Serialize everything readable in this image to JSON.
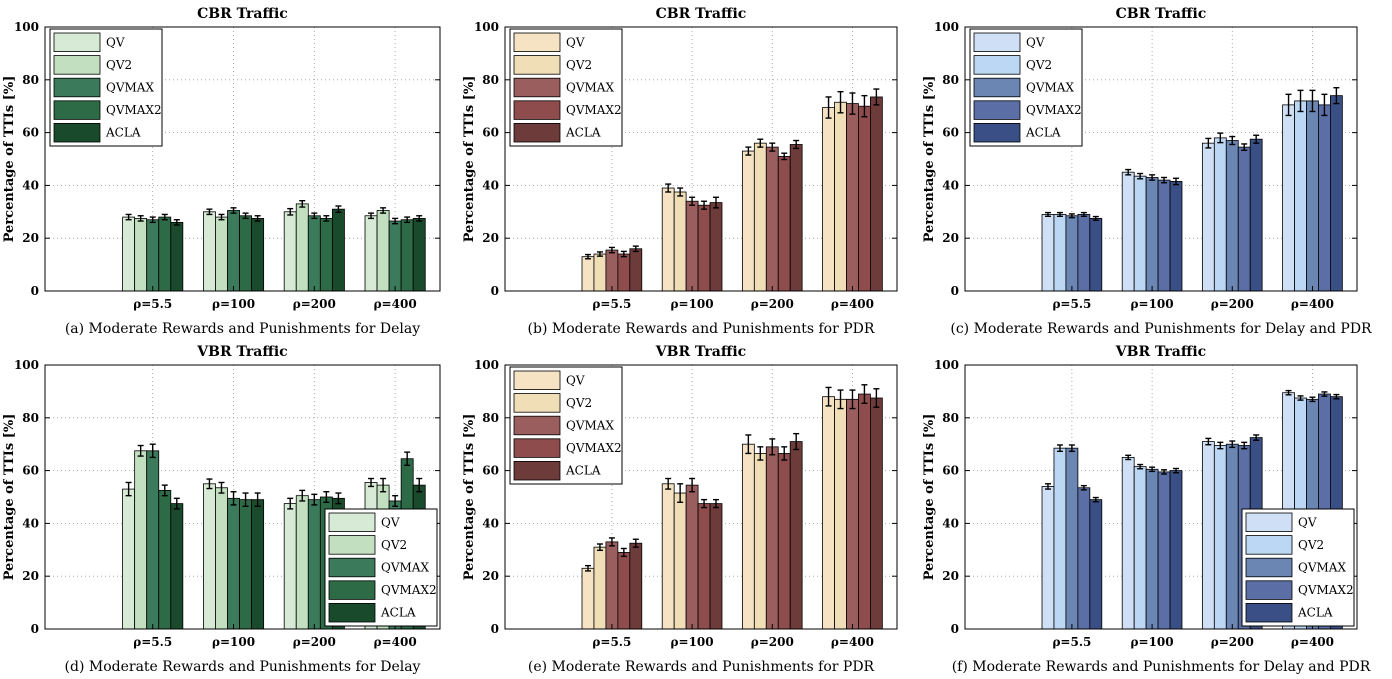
{
  "panel_labels": [
    "(a)",
    "(b)",
    "(c)",
    "(d)",
    "(e)",
    "(f)"
  ],
  "palettes": {
    "green": [
      "#d7ead6",
      "#c2e0c0",
      "#3b7a5a",
      "#2d6b47",
      "#1a4a2c"
    ],
    "brown": [
      "#f6e3c4",
      "#f0deb7",
      "#9a5e5e",
      "#8f4c4c",
      "#6e3b3b"
    ],
    "blue": [
      "#cfe0f6",
      "#bcd7f4",
      "#6b86b3",
      "#5b6fa6",
      "#3a4f86"
    ]
  },
  "chart_data": [
    {
      "type": "bar",
      "title": "CBR Traffic",
      "caption": "(a) Moderate Rewards and Punishments for Delay",
      "ylabel": "Percentage of TTIs [%]",
      "xlabel": "",
      "categories": [
        "ρ=5.5",
        "ρ=100",
        "ρ=200",
        "ρ=400"
      ],
      "ylim": [
        0,
        100
      ],
      "yticks": [
        0,
        20,
        40,
        60,
        80,
        100
      ],
      "grid": true,
      "legend_position": "top-left",
      "palette": "green",
      "series": [
        {
          "name": "QV",
          "values": [
            28,
            30,
            30,
            28.5
          ],
          "errors": [
            1,
            1,
            1.2,
            1
          ]
        },
        {
          "name": "QV2",
          "values": [
            27.5,
            28,
            33,
            30.5
          ],
          "errors": [
            1,
            1,
            1.2,
            1
          ]
        },
        {
          "name": "QVMAX",
          "values": [
            27,
            30.5,
            28.5,
            26.5
          ],
          "errors": [
            1,
            1,
            1,
            1
          ]
        },
        {
          "name": "QVMAX2",
          "values": [
            28,
            28.5,
            27.5,
            27
          ],
          "errors": [
            1,
            1,
            1,
            1
          ]
        },
        {
          "name": "ACLA",
          "values": [
            26,
            27.5,
            31,
            27.5
          ],
          "errors": [
            1,
            1,
            1.2,
            1
          ]
        }
      ]
    },
    {
      "type": "bar",
      "title": "CBR Traffic",
      "caption": "(b) Moderate Rewards and Punishments for PDR",
      "ylabel": "Percentage of TTIs [%]",
      "xlabel": "",
      "categories": [
        "ρ=5.5",
        "ρ=100",
        "ρ=200",
        "ρ=400"
      ],
      "ylim": [
        0,
        100
      ],
      "yticks": [
        0,
        20,
        40,
        60,
        80,
        100
      ],
      "grid": true,
      "legend_position": "top-left",
      "palette": "brown",
      "series": [
        {
          "name": "QV",
          "values": [
            13,
            39,
            53,
            69.5
          ],
          "errors": [
            0.8,
            1.5,
            1.5,
            4
          ]
        },
        {
          "name": "QV2",
          "values": [
            14,
            37.5,
            56,
            71.5
          ],
          "errors": [
            0.8,
            1.5,
            1.5,
            4
          ]
        },
        {
          "name": "QVMAX",
          "values": [
            15.5,
            34,
            54.5,
            71
          ],
          "errors": [
            1,
            1.5,
            1.5,
            4
          ]
        },
        {
          "name": "QVMAX2",
          "values": [
            14,
            32.5,
            51,
            70
          ],
          "errors": [
            1,
            1.5,
            1.2,
            4
          ]
        },
        {
          "name": "ACLA",
          "values": [
            16,
            33.5,
            55.5,
            73.5
          ],
          "errors": [
            1,
            2,
            1.5,
            3
          ]
        }
      ]
    },
    {
      "type": "bar",
      "title": "CBR Traffic",
      "caption": "(c) Moderate Rewards and Punishments for Delay and PDR",
      "ylabel": "Percentage of TTIs [%]",
      "xlabel": "",
      "categories": [
        "ρ=5.5",
        "ρ=100",
        "ρ=200",
        "ρ=400"
      ],
      "ylim": [
        0,
        100
      ],
      "yticks": [
        0,
        20,
        40,
        60,
        80,
        100
      ],
      "grid": true,
      "legend_position": "top-left",
      "palette": "blue",
      "series": [
        {
          "name": "QV",
          "values": [
            29,
            45,
            56,
            70.5
          ],
          "errors": [
            0.7,
            1,
            1.8,
            4
          ]
        },
        {
          "name": "QV2",
          "values": [
            29,
            43.5,
            58,
            72
          ],
          "errors": [
            0.7,
            1,
            1.8,
            4
          ]
        },
        {
          "name": "QVMAX",
          "values": [
            28.5,
            43,
            57,
            72
          ],
          "errors": [
            0.7,
            1,
            1.5,
            4
          ]
        },
        {
          "name": "QVMAX2",
          "values": [
            29,
            42,
            54.5,
            70.5
          ],
          "errors": [
            0.7,
            1,
            1.2,
            4
          ]
        },
        {
          "name": "ACLA",
          "values": [
            27.5,
            41.5,
            57.5,
            74
          ],
          "errors": [
            0.7,
            1.2,
            1.5,
            3
          ]
        }
      ]
    },
    {
      "type": "bar",
      "title": "VBR Traffic",
      "caption": "(d) Moderate Rewards and Punishments for Delay",
      "ylabel": "Percentage of TTIs [%]",
      "xlabel": "",
      "categories": [
        "ρ=5.5",
        "ρ=100",
        "ρ=200",
        "ρ=400"
      ],
      "ylim": [
        0,
        100
      ],
      "yticks": [
        0,
        20,
        40,
        60,
        80,
        100
      ],
      "grid": true,
      "legend_position": "bottom-right",
      "palette": "green",
      "series": [
        {
          "name": "QV",
          "values": [
            53,
            55,
            47.5,
            55.5
          ],
          "errors": [
            2.5,
            1.8,
            2,
            1.5
          ]
        },
        {
          "name": "QV2",
          "values": [
            67.5,
            53.5,
            50.5,
            54.5
          ],
          "errors": [
            2,
            2,
            2,
            2.5
          ]
        },
        {
          "name": "QVMAX",
          "values": [
            67.5,
            49.5,
            49,
            48.5
          ],
          "errors": [
            2.5,
            2.5,
            2,
            2
          ]
        },
        {
          "name": "QVMAX2",
          "values": [
            52.5,
            49,
            50,
            64.5
          ],
          "errors": [
            2,
            2.5,
            2,
            2.5
          ]
        },
        {
          "name": "ACLA",
          "values": [
            47.5,
            49,
            49.5,
            54.5
          ],
          "errors": [
            2,
            2.5,
            2,
            2.5
          ]
        }
      ]
    },
    {
      "type": "bar",
      "title": "VBR Traffic",
      "caption": "(e) Moderate Rewards and Punishments for PDR",
      "ylabel": "Percentage of TTIs [%]",
      "xlabel": "",
      "categories": [
        "ρ=5.5",
        "ρ=100",
        "ρ=200",
        "ρ=400"
      ],
      "ylim": [
        0,
        100
      ],
      "yticks": [
        0,
        20,
        40,
        60,
        80,
        100
      ],
      "grid": true,
      "legend_position": "top-left",
      "palette": "brown",
      "series": [
        {
          "name": "QV",
          "values": [
            23,
            55,
            70,
            88
          ],
          "errors": [
            1,
            2,
            3.5,
            3.5
          ]
        },
        {
          "name": "QV2",
          "values": [
            31,
            51.5,
            66.5,
            87
          ],
          "errors": [
            1.2,
            3.5,
            2.5,
            3.5
          ]
        },
        {
          "name": "QVMAX",
          "values": [
            33,
            54.5,
            69,
            87
          ],
          "errors": [
            1.5,
            2.5,
            3,
            3.5
          ]
        },
        {
          "name": "QVMAX2",
          "values": [
            29,
            47.5,
            66.5,
            89
          ],
          "errors": [
            1.5,
            1.5,
            2.5,
            3.5
          ]
        },
        {
          "name": "ACLA",
          "values": [
            32.5,
            47.5,
            71,
            87.5
          ],
          "errors": [
            1.5,
            1.5,
            3,
            3.5
          ]
        }
      ]
    },
    {
      "type": "bar",
      "title": "VBR Traffic",
      "caption": "(f) Moderate Rewards and Punishments for Delay and PDR",
      "ylabel": "Percentage of TTIs [%]",
      "xlabel": "",
      "categories": [
        "ρ=5.5",
        "ρ=100",
        "ρ=200",
        "ρ=400"
      ],
      "ylim": [
        0,
        100
      ],
      "yticks": [
        0,
        20,
        40,
        60,
        80,
        100
      ],
      "grid": true,
      "legend_position": "bottom-right",
      "palette": "blue",
      "series": [
        {
          "name": "QV",
          "values": [
            54,
            65,
            71,
            89.5
          ],
          "errors": [
            1,
            0.8,
            1.2,
            0.8
          ]
        },
        {
          "name": "QV2",
          "values": [
            68.5,
            61.5,
            69.5,
            87.5
          ],
          "errors": [
            1.2,
            0.8,
            1.2,
            0.8
          ]
        },
        {
          "name": "QVMAX",
          "values": [
            68.5,
            60.5,
            70,
            87
          ],
          "errors": [
            1.2,
            0.8,
            1.2,
            0.8
          ]
        },
        {
          "name": "QVMAX2",
          "values": [
            53.5,
            59.5,
            69.5,
            89
          ],
          "errors": [
            0.8,
            0.8,
            1.2,
            0.8
          ]
        },
        {
          "name": "ACLA",
          "values": [
            49,
            60,
            72.5,
            88
          ],
          "errors": [
            0.8,
            0.8,
            1,
            0.8
          ]
        }
      ]
    }
  ]
}
